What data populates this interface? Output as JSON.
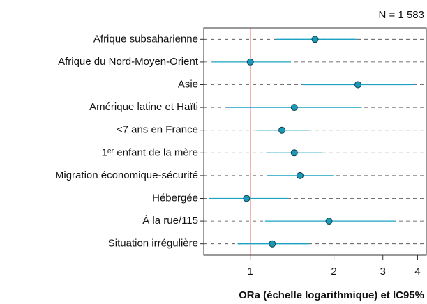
{
  "chart_data": {
    "type": "forest",
    "annotation": "N = 1 583",
    "x_label": "ORa (échelle logarithmique) et IC95%",
    "categories": [
      "Afrique subsaharienne",
      "Afrique du Nord-Moyen-Orient",
      "Asie",
      "Amérique latine et Haïti",
      "<7 ans en France",
      "1ᵉʳ enfant de la mère",
      "Migration économique-sécurité",
      "Hébergée",
      "À la rue/115",
      "Situation irrégulière"
    ],
    "values": [
      1.71,
      1.0,
      2.44,
      1.44,
      1.3,
      1.44,
      1.51,
      0.97,
      1.92,
      1.2
    ],
    "ci_low": [
      1.24,
      0.73,
      1.54,
      0.83,
      1.05,
      1.14,
      1.15,
      0.71,
      1.13,
      0.9
    ],
    "ci_high": [
      2.41,
      1.4,
      3.89,
      2.52,
      1.63,
      1.82,
      1.99,
      1.37,
      3.33,
      1.63
    ],
    "reference_line": 1,
    "xscale": "log",
    "xlim": [
      0.68,
      4.3
    ],
    "xticks": [
      1,
      2,
      3,
      4
    ],
    "line_color": "#1ca3c4",
    "point_color": "#1b9ab8",
    "reference_color": "#e3242b",
    "grid": true
  }
}
